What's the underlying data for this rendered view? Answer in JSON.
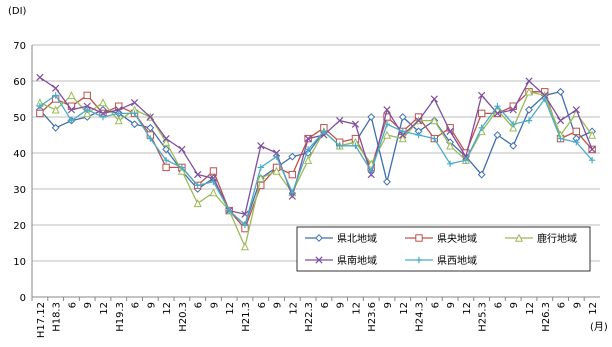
{
  "chart_data": {
    "type": "line",
    "y_label": "(DI)",
    "x_label": "(月)",
    "categories": [
      "H17.12",
      "H18.3",
      "6",
      "9",
      "12",
      "H19.3",
      "6",
      "9",
      "12",
      "H20.3",
      "6",
      "9",
      "12",
      "H21.3",
      "6",
      "9",
      "12",
      "H22.3",
      "6",
      "9",
      "12",
      "H23.6",
      "9",
      "12",
      "H24.3",
      "6",
      "9",
      "12",
      "H25.3",
      "6",
      "9",
      "12",
      "H26.3",
      "6",
      "9",
      "12"
    ],
    "series": [
      {
        "name": "県北地域",
        "color": "#3f6fb0",
        "marker": "diamond",
        "values": [
          52,
          47,
          49,
          50,
          52,
          51,
          48,
          47,
          41,
          35,
          30,
          33,
          24,
          20,
          33,
          36,
          39,
          40,
          46,
          42,
          43,
          50,
          32,
          50,
          46,
          49,
          43,
          39,
          34,
          45,
          42,
          52,
          56,
          57,
          44,
          46
        ]
      },
      {
        "name": "県央地域",
        "color": "#c0504d",
        "marker": "square",
        "values": [
          51,
          55,
          53,
          56,
          51,
          53,
          51,
          45,
          36,
          36,
          31,
          35,
          24,
          19,
          31,
          36,
          34,
          44,
          47,
          43,
          44,
          36,
          50,
          46,
          50,
          44,
          47,
          40,
          51,
          51,
          53,
          57,
          57,
          44,
          46,
          41
        ]
      },
      {
        "name": "鹿行地域",
        "color": "#9bbb59",
        "marker": "triangle",
        "values": [
          54,
          52,
          56,
          51,
          54,
          49,
          52,
          50,
          43,
          35,
          26,
          29,
          24,
          14,
          33,
          35,
          29,
          38,
          46,
          42,
          43,
          37,
          45,
          44,
          49,
          49,
          42,
          38,
          46,
          52,
          47,
          57,
          56,
          45,
          51,
          45
        ]
      },
      {
        "name": "県南地域",
        "color": "#7f4f9f",
        "marker": "x",
        "values": [
          61,
          58,
          52,
          53,
          51,
          52,
          54,
          50,
          44,
          41,
          34,
          33,
          24,
          23,
          42,
          40,
          28,
          44,
          45,
          49,
          48,
          34,
          52,
          45,
          49,
          55,
          46,
          39,
          56,
          51,
          52,
          60,
          56,
          49,
          52,
          41
        ]
      },
      {
        "name": "県西地域",
        "color": "#4bacc6",
        "marker": "plus",
        "values": [
          53,
          56,
          49,
          52,
          50,
          51,
          51,
          44,
          38,
          36,
          31,
          32,
          24,
          20,
          36,
          39,
          29,
          41,
          46,
          42,
          42,
          35,
          48,
          46,
          45,
          44,
          37,
          38,
          47,
          53,
          48,
          49,
          55,
          44,
          43,
          38
        ]
      }
    ],
    "ylim": [
      0,
      70
    ],
    "yticks": [
      0,
      10,
      20,
      30,
      40,
      50,
      60,
      70
    ],
    "grid": true
  }
}
